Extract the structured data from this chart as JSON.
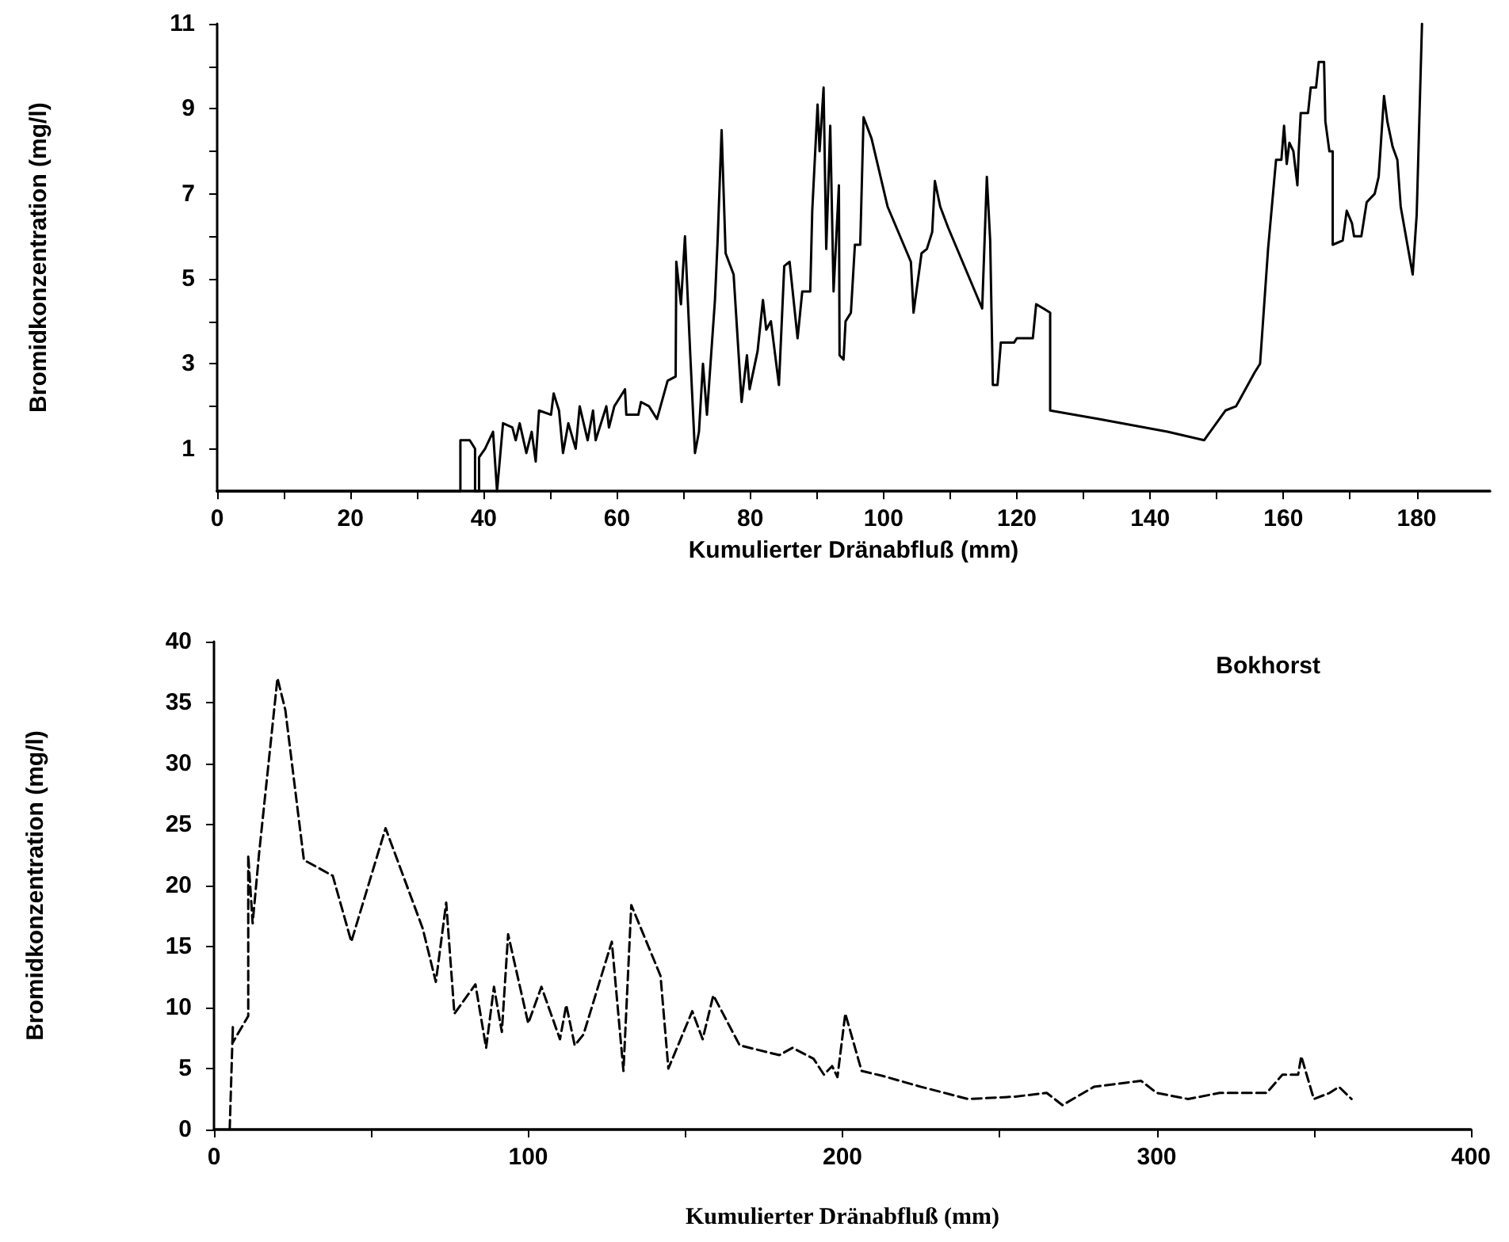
{
  "chart_data": [
    {
      "type": "line",
      "xlabel": "Kumulierter Dränabfluß (mm)",
      "ylabel": "Bromidkonzentration (mg/l)",
      "xlim": [
        0,
        191
      ],
      "ylim": [
        0,
        11
      ],
      "xticks": [
        0,
        {
          "value": 10,
          "label": null
        },
        20,
        {
          "value": 30,
          "label": null
        },
        40,
        {
          "value": 50,
          "label": null
        },
        60,
        {
          "value": 70,
          "label": null
        },
        80,
        {
          "value": 90,
          "label": null
        },
        100,
        {
          "value": 110,
          "label": null
        },
        120,
        {
          "value": 130,
          "label": null
        },
        140,
        {
          "value": 150,
          "label": null
        },
        160,
        {
          "value": 170,
          "label": null
        },
        180
      ],
      "yticks": [
        1,
        {
          "value": 2,
          "label": null
        },
        3,
        {
          "value": 4,
          "label": null
        },
        5,
        {
          "value": 6,
          "label": null
        },
        7,
        {
          "value": 8,
          "label": null
        },
        9,
        {
          "value": 10,
          "label": null
        },
        11
      ],
      "grid": false,
      "marker": "none",
      "line_style": "solid",
      "series": [
        {
          "color": "#000000",
          "x": [
            0,
            36.5,
            36.5,
            37.9,
            38.7,
            38.7,
            39.3,
            39.3,
            40.2,
            41.4,
            42.0,
            42.9,
            44.3,
            44.8,
            45.4,
            46.4,
            47.2,
            47.8,
            48.3,
            50.1,
            50.5,
            51.3,
            51.9,
            52.7,
            53.8,
            54.4,
            55.6,
            56.4,
            56.8,
            58.4,
            58.8,
            59.6,
            61.2,
            61.4,
            63.2,
            63.6,
            64.8,
            66.0,
            67.6,
            68.8,
            68.9,
            69.6,
            70.2,
            71.0,
            71.7,
            72.3,
            72.9,
            73.5,
            74.7,
            75.1,
            75.7,
            76.3,
            77.5,
            78.7,
            79.5,
            79.9,
            81.1,
            81.9,
            82.4,
            83.1,
            84.3,
            85.1,
            85.9,
            87.1,
            87.8,
            89.0,
            89.3,
            90.1,
            90.4,
            91.0,
            91.4,
            92.0,
            92.5,
            93.3,
            93.4,
            94.0,
            94.3,
            95.1,
            95.7,
            96.5,
            97.0,
            98.2,
            100.6,
            104.1,
            104.5,
            105.7,
            106.5,
            107.3,
            107.7,
            108.5,
            109.7,
            114.8,
            115.5,
            116.0,
            116.4,
            117.1,
            117.6,
            119.6,
            120.0,
            122.4,
            122.9,
            124.0,
            125.0,
            125.0,
            132.3,
            142.6,
            148.1,
            151.3,
            152.9,
            155.7,
            156.5,
            157.7,
            158.9,
            159.7,
            160.1,
            160.5,
            160.9,
            161.5,
            162.1,
            162.3,
            162.6,
            163.7,
            164.1,
            164.9,
            165.3,
            166.1,
            166.3,
            166.9,
            167.4,
            167.4,
            168.9,
            169.5,
            170.3,
            170.6,
            171.7,
            172.5,
            173.7,
            174.3,
            175.1,
            175.6,
            176.4,
            177.1,
            177.6,
            179.4,
            180.0,
            180.8
          ],
          "values": [
            0,
            0,
            1.2,
            1.2,
            1.0,
            0,
            0,
            0.8,
            1.0,
            1.4,
            0,
            1.6,
            1.5,
            1.2,
            1.6,
            0.9,
            1.4,
            0.7,
            1.9,
            1.8,
            2.3,
            1.9,
            0.9,
            1.6,
            1.0,
            2.0,
            1.2,
            1.9,
            1.2,
            2.0,
            1.5,
            2.0,
            2.4,
            1.8,
            1.8,
            2.1,
            2.0,
            1.7,
            2.6,
            2.7,
            5.4,
            4.4,
            6.0,
            3.2,
            0.9,
            1.4,
            3.0,
            1.8,
            4.5,
            5.9,
            8.5,
            5.6,
            5.1,
            2.1,
            3.2,
            2.4,
            3.3,
            4.5,
            3.8,
            4.0,
            2.5,
            5.3,
            5.4,
            3.6,
            4.7,
            4.7,
            6.6,
            9.1,
            8.0,
            9.5,
            5.7,
            8.6,
            4.7,
            7.2,
            3.2,
            3.1,
            4.0,
            4.2,
            5.8,
            5.8,
            8.8,
            8.3,
            6.7,
            5.4,
            4.2,
            5.6,
            5.7,
            6.1,
            7.3,
            6.7,
            6.2,
            4.3,
            7.4,
            5.9,
            2.5,
            2.5,
            3.5,
            3.5,
            3.6,
            3.6,
            4.4,
            4.3,
            4.2,
            1.9,
            1.7,
            1.4,
            1.2,
            1.9,
            2.0,
            2.8,
            3.0,
            5.7,
            7.8,
            7.8,
            8.6,
            7.7,
            8.2,
            8.0,
            7.2,
            8.0,
            8.9,
            8.9,
            9.5,
            9.5,
            10.1,
            10.1,
            8.7,
            8.0,
            8.0,
            5.8,
            5.9,
            6.6,
            6.3,
            6.0,
            6.0,
            6.8,
            7.0,
            7.4,
            9.3,
            8.7,
            8.1,
            7.8,
            6.7,
            5.1,
            6.5,
            11
          ]
        }
      ]
    },
    {
      "type": "line",
      "xlabel": "Kumulierter Dränabfluß (mm)",
      "ylabel": "Bromidkonzentration (mg/l)",
      "xlim": [
        0,
        400
      ],
      "ylim": [
        0,
        40
      ],
      "xticks": [
        0,
        {
          "value": 50,
          "label": null
        },
        100,
        {
          "value": 150,
          "label": null
        },
        200,
        {
          "value": 250,
          "label": null
        },
        300,
        {
          "value": 350,
          "label": null
        },
        400
      ],
      "yticks": [
        0,
        5,
        10,
        15,
        20,
        25,
        30,
        35,
        40
      ],
      "grid": false,
      "marker": "none",
      "line_style": "dashed",
      "annotations": [
        "Bokhorst"
      ],
      "series": [
        {
          "color": "#000000",
          "x": [
            5,
            6,
            5.9,
            10.9,
            10.9,
            12.3,
            14.3,
            20.2,
            22.7,
            28.6,
            37.8,
            43.7,
            54.6,
            66.4,
            70.6,
            73.9,
            76.5,
            83.2,
            86.6,
            89.1,
            91.6,
            93.6,
            100.0,
            104.2,
            110.1,
            112.1,
            114.8,
            117.6,
            126.6,
            130.3,
            132.8,
            142.1,
            144.6,
            152.2,
            155.5,
            158.9,
            167.3,
            179.9,
            184.1,
            190.8,
            194.1,
            196.7,
            198.4,
            200.9,
            206.1,
            212.7,
            225,
            240,
            255,
            265,
            270,
            280,
            295,
            300,
            310,
            320,
            335,
            340,
            345,
            346,
            350,
            355,
            358,
            362
          ],
          "values": [
            0,
            8.4,
            7.1,
            9.3,
            22.5,
            16.9,
            22.5,
            37.0,
            34.4,
            22.1,
            20.8,
            15.4,
            24.7,
            16.5,
            12.1,
            18.6,
            9.5,
            11.9,
            6.7,
            11.7,
            8.0,
            16.0,
            8.7,
            11.7,
            7.4,
            10.2,
            6.9,
            7.8,
            15.4,
            4.8,
            18.4,
            12.6,
            5.0,
            9.7,
            7.4,
            11.0,
            6.9,
            6.1,
            6.7,
            5.8,
            4.5,
            5.2,
            4.3,
            9.5,
            4.8,
            4.4,
            3.5,
            2.5,
            2.7,
            3.0,
            2.0,
            3.5,
            4.0,
            3.0,
            2.5,
            3.0,
            3.0,
            4.5,
            4.5,
            6.0,
            2.5,
            3.0,
            3.5,
            2.5
          ]
        }
      ]
    }
  ]
}
